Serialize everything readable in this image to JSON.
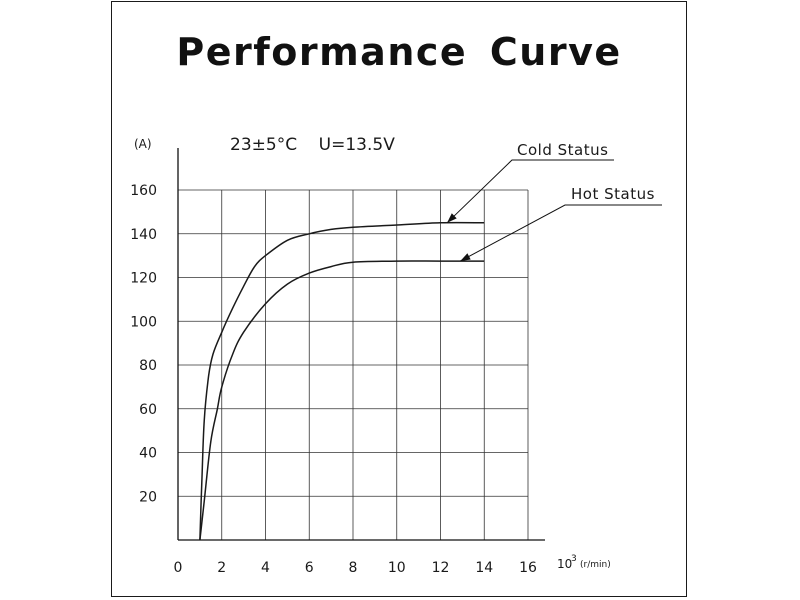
{
  "chart_data": {
    "type": "line",
    "title": "Performance Curve",
    "conditions": "23±5°C    U=13.5V",
    "ylabel": "(A)",
    "xlabel_prefix": "10",
    "xlabel_exp": "3",
    "xlabel_suffix": "(r/min)",
    "xlim": [
      0,
      16
    ],
    "ylim": [
      0,
      160
    ],
    "x_ticks": [
      0,
      2,
      4,
      6,
      8,
      10,
      12,
      14,
      16
    ],
    "y_ticks": [
      20,
      40,
      60,
      80,
      100,
      120,
      140,
      160
    ],
    "grid": true,
    "series": [
      {
        "name": "Cold Status",
        "color": "#1a1a1a",
        "x": [
          1.0,
          1.1,
          1.2,
          1.4,
          1.6,
          2.0,
          2.5,
          3.0,
          3.5,
          4.0,
          5.0,
          6.0,
          7.0,
          8.0,
          10.0,
          12.0,
          14.0
        ],
        "y": [
          0,
          30,
          55,
          75,
          85,
          95,
          106,
          116,
          125,
          130,
          137,
          140,
          142,
          143,
          144,
          145,
          145
        ]
      },
      {
        "name": "Hot Status",
        "color": "#1a1a1a",
        "x": [
          1.0,
          1.2,
          1.5,
          1.8,
          2.0,
          2.5,
          3.0,
          4.0,
          5.0,
          6.0,
          7.0,
          8.0,
          10.0,
          12.0,
          14.0
        ],
        "y": [
          0,
          18,
          45,
          60,
          70,
          85,
          95,
          108,
          117,
          122,
          125,
          127,
          127.5,
          127.5,
          127.5
        ]
      }
    ]
  }
}
